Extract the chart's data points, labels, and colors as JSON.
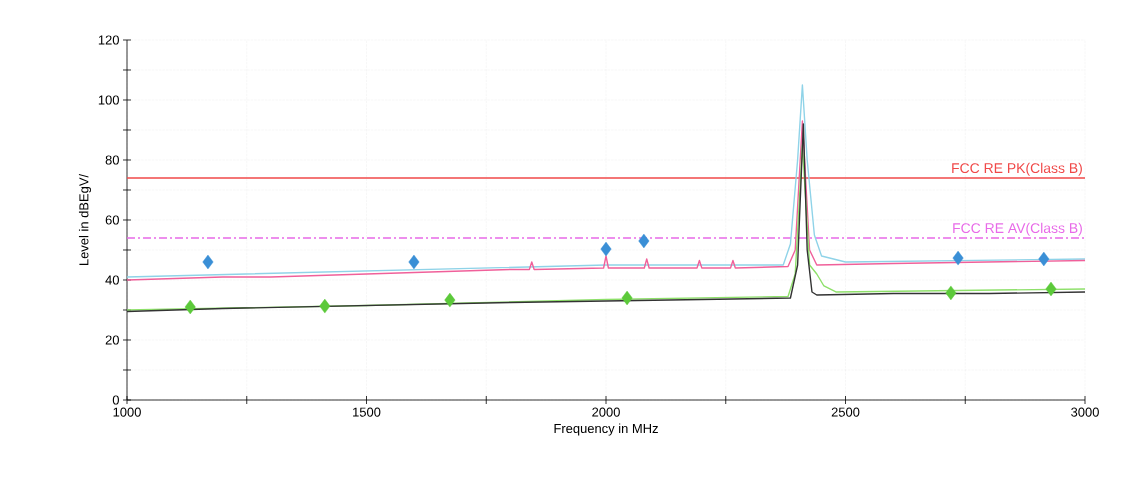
{
  "chart_data": {
    "type": "line",
    "xlabel": "Frequency in MHz",
    "ylabel": "Level in dBEgV/",
    "xlim": [
      1000,
      3000
    ],
    "xticks": [
      1000,
      {
        "value": 1250,
        "label": null
      },
      1500,
      {
        "value": 1750,
        "label": null
      },
      2000,
      {
        "value": 2250,
        "label": null
      },
      2500,
      {
        "value": 2750,
        "label": null
      },
      3000
    ],
    "ylim": [
      0,
      120
    ],
    "yticks": [
      0,
      {
        "value": 10,
        "label": null
      },
      20,
      {
        "value": 30,
        "label": null
      },
      40,
      {
        "value": 50,
        "label": null
      },
      60,
      {
        "value": 70,
        "label": null
      },
      80,
      {
        "value": 90,
        "label": null
      },
      100,
      {
        "value": 110,
        "label": null
      },
      120
    ],
    "grid": true,
    "series": [
      {
        "color": "#8fd3e8",
        "marker": "none",
        "x": [
          1000,
          1500,
          2000,
          2370,
          2385,
          2400,
          2410,
          2420,
          2435,
          2450,
          2500,
          3000
        ],
        "values": [
          41,
          43,
          45,
          45,
          52,
          80,
          105,
          80,
          55,
          48,
          46,
          47
        ]
      },
      {
        "color": "#f0609a",
        "marker": "none",
        "x": [
          1000,
          1100,
          1200,
          1300,
          1400,
          1500,
          1600,
          1700,
          1800,
          1840,
          1845,
          1850,
          1995,
          2000,
          2005,
          2080,
          2085,
          2090,
          2190,
          2195,
          2200,
          2260,
          2265,
          2270,
          2380,
          2395,
          2410,
          2425,
          2440,
          2600,
          2800,
          3000
        ],
        "values": [
          40,
          40.5,
          41,
          41,
          41.5,
          42,
          42.5,
          43,
          43.5,
          43.5,
          46,
          43.5,
          44,
          48,
          44,
          44,
          47,
          44,
          44,
          46.5,
          44,
          44,
          46.5,
          44,
          44.5,
          50,
          93,
          50,
          45,
          45.5,
          46,
          46.5
        ]
      },
      {
        "color": "#8ee06a",
        "marker": "none",
        "x": [
          1000,
          1500,
          2000,
          2380,
          2395,
          2410,
          2425,
          2440,
          2455,
          2480,
          3000
        ],
        "values": [
          30,
          31.5,
          33.5,
          34.5,
          42,
          85,
          45,
          42,
          38,
          36,
          37
        ]
      },
      {
        "color": "#333333",
        "marker": "none",
        "x": [
          1000,
          1200,
          1500,
          1800,
          2000,
          2200,
          2385,
          2400,
          2412,
          2420,
          2430,
          2440,
          2600,
          2800,
          3000
        ],
        "values": [
          29.5,
          30.5,
          31.5,
          32.5,
          33,
          33.5,
          34,
          45,
          92,
          50,
          36,
          35,
          35.5,
          35.5,
          36
        ]
      },
      {
        "type": "scatter",
        "color": "#3a8fd6",
        "marker": "diamond",
        "x": [
          1169,
          1599,
          2000,
          2079,
          2735,
          2914
        ],
        "values": [
          46,
          46,
          50.3,
          53,
          47.3,
          47
        ]
      },
      {
        "type": "scatter",
        "color": "#5cc93a",
        "marker": "diamond",
        "x": [
          1132,
          1413,
          1674,
          2044,
          2720,
          2929
        ],
        "values": [
          31,
          31.3,
          33.3,
          34,
          35.7,
          37
        ]
      }
    ],
    "ref_lines": [
      {
        "axis": "y",
        "value": 74,
        "label": "FCC RE PK(Class B)",
        "color": "#f04848",
        "line_style": "solid"
      },
      {
        "axis": "y",
        "value": 54,
        "label": "FCC RE AV(Class B)",
        "color": "#e86ae8",
        "line_style": "dashed"
      }
    ]
  }
}
